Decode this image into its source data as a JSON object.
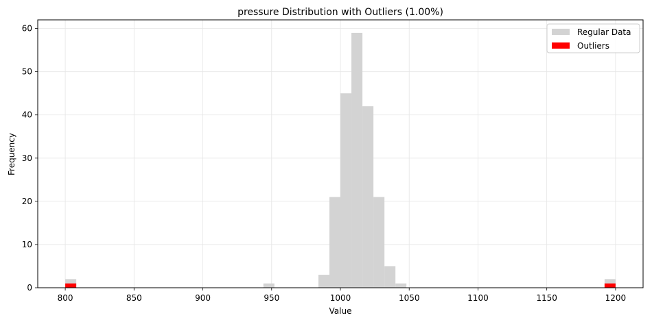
{
  "chart_data": {
    "type": "bar",
    "title": "pressure Distribution with Outliers (1.00%)",
    "xlabel": "Value",
    "ylabel": "Frequency",
    "xlim": [
      780,
      1220
    ],
    "ylim": [
      0,
      62
    ],
    "xticks": [
      800,
      850,
      900,
      950,
      1000,
      1050,
      1100,
      1150,
      1200
    ],
    "yticks": [
      0,
      10,
      20,
      30,
      40,
      50,
      60
    ],
    "grid": true,
    "legend_position": "top-right",
    "series": [
      {
        "name": "Regular Data",
        "color": "#d3d3d3",
        "bins": [
          {
            "x0": 800,
            "x1": 808,
            "count": 2
          },
          {
            "x0": 944,
            "x1": 952,
            "count": 1
          },
          {
            "x0": 984,
            "x1": 992,
            "count": 3
          },
          {
            "x0": 992,
            "x1": 1000,
            "count": 21
          },
          {
            "x0": 1000,
            "x1": 1008,
            "count": 45
          },
          {
            "x0": 1008,
            "x1": 1016,
            "count": 59
          },
          {
            "x0": 1016,
            "x1": 1024,
            "count": 42
          },
          {
            "x0": 1024,
            "x1": 1032,
            "count": 21
          },
          {
            "x0": 1032,
            "x1": 1040,
            "count": 5
          },
          {
            "x0": 1040,
            "x1": 1048,
            "count": 1
          },
          {
            "x0": 1192,
            "x1": 1200,
            "count": 2
          }
        ]
      },
      {
        "name": "Outliers",
        "color": "#ff0000",
        "bins": [
          {
            "x0": 800,
            "x1": 808,
            "count": 1
          },
          {
            "x0": 1192,
            "x1": 1200,
            "count": 1
          }
        ]
      }
    ]
  }
}
